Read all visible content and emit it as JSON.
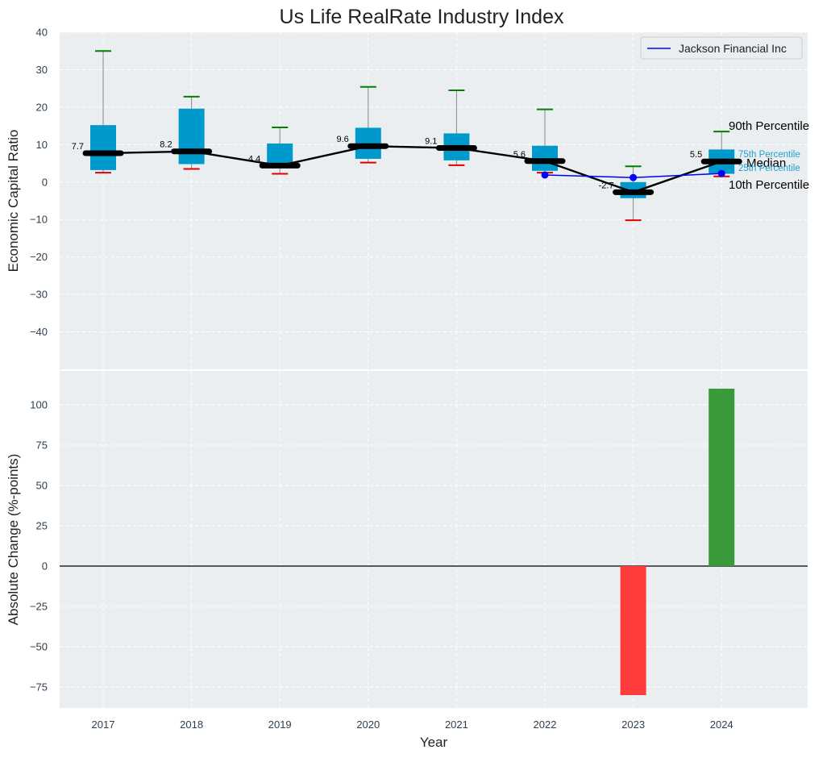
{
  "title": "Us Life RealRate Industry Index",
  "xlabel": "Year",
  "top_panel": {
    "ylabel": "Economic Capital Ratio"
  },
  "bottom_panel": {
    "ylabel": "Absolute Change (%-points)"
  },
  "legend": {
    "label": "Jackson Financial Inc",
    "placement": "top-right"
  },
  "annotations": {
    "p90": "90th Percentile",
    "p75": "75th Percentile",
    "median": "Median",
    "p25": "25th Percentile",
    "p10": "10th Percentile"
  },
  "colors": {
    "box": "#0099cc",
    "median_line": "#000000",
    "company": "#0000ff",
    "whisker_top": "#008000",
    "whisker_bottom": "#e00000",
    "bar_positive": "#3a9a3a",
    "bar_negative": "#ff3c3c",
    "panel_bg": "#eaeef0"
  },
  "chart_data": [
    {
      "type": "box",
      "categories": [
        "2017",
        "2018",
        "2019",
        "2020",
        "2021",
        "2022",
        "2023",
        "2024"
      ],
      "ylabel": "Economic Capital Ratio",
      "ylim": [
        -50,
        40
      ],
      "yticks": [
        -40,
        -30,
        -20,
        -10,
        0,
        10,
        20,
        30,
        40
      ],
      "grid": true,
      "legend": "top-right",
      "p10": [
        2.5,
        3.5,
        2.2,
        5.2,
        4.5,
        2.5,
        -10.2,
        1.5
      ],
      "p25": [
        3.2,
        4.8,
        4.0,
        6.2,
        5.8,
        3.0,
        -4.3,
        2.2
      ],
      "median": [
        7.7,
        8.2,
        4.4,
        9.6,
        9.1,
        5.6,
        -2.7,
        5.5
      ],
      "median_labels": [
        "7.7",
        "8.2",
        "4.4",
        "9.6",
        "9.1",
        "5.6",
        "-2.7",
        "5.5"
      ],
      "p75": [
        15.2,
        19.6,
        10.3,
        14.5,
        13.0,
        9.7,
        0.0,
        8.7
      ],
      "p90": [
        35.0,
        22.8,
        14.6,
        25.4,
        24.5,
        19.4,
        4.2,
        13.5
      ],
      "series": [
        {
          "name": "Jackson Financial Inc",
          "x": [
            "2022",
            "2023",
            "2024"
          ],
          "values": [
            1.9,
            1.2,
            2.3
          ]
        }
      ]
    },
    {
      "type": "bar",
      "categories": [
        "2017",
        "2018",
        "2019",
        "2020",
        "2021",
        "2022",
        "2023",
        "2024"
      ],
      "xlabel": "Year",
      "ylabel": "Absolute Change (%-points)",
      "ylim": [
        -88,
        121
      ],
      "yticks": [
        -75,
        -50,
        -25,
        0,
        25,
        50,
        75,
        100
      ],
      "grid": true,
      "values": [
        null,
        null,
        null,
        null,
        null,
        null,
        -80,
        110
      ]
    }
  ]
}
